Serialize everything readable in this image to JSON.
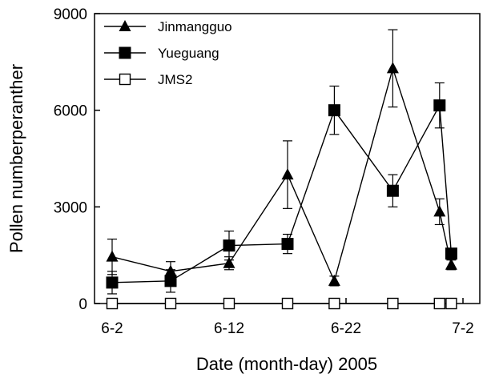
{
  "chart_data": {
    "type": "line",
    "title": "",
    "xlabel": "Date (month-day) 2005",
    "ylabel": "Pollen numberperanther",
    "xlim": [
      "06-02",
      "07-02"
    ],
    "ylim": [
      0,
      9000
    ],
    "x_ticks": [
      {
        "date": "06-02",
        "label": "6-2"
      },
      {
        "date": "06-12",
        "label": "6-12"
      },
      {
        "date": "06-22",
        "label": "6-22"
      },
      {
        "date": "07-02",
        "label": "7-2"
      }
    ],
    "y_ticks": [
      {
        "value": 0,
        "label": "0"
      },
      {
        "value": 3000,
        "label": "3000"
      },
      {
        "value": 6000,
        "label": "6000"
      },
      {
        "value": 9000,
        "label": "9000"
      }
    ],
    "x": [
      "06-02",
      "06-07",
      "06-12",
      "06-17",
      "06-21",
      "06-22",
      "06-27",
      "07-01"
    ],
    "legend_position": "top-left",
    "grid": false,
    "series": [
      {
        "name": "Jinmangguo",
        "marker": "triangle-filled",
        "x": [
          "06-02",
          "06-07",
          "06-12",
          "06-17",
          "06-21",
          "06-26",
          "06-30",
          "07-01"
        ],
        "values": [
          1450,
          1000,
          1250,
          4000,
          700,
          7300,
          2850,
          1200
        ],
        "errors": [
          550,
          300,
          200,
          1050,
          150,
          1200,
          400,
          150
        ]
      },
      {
        "name": "Yueguang",
        "marker": "square-filled",
        "x": [
          "06-02",
          "06-07",
          "06-12",
          "06-17",
          "06-21",
          "06-26",
          "06-30",
          "07-01"
        ],
        "values": [
          650,
          700,
          1800,
          1850,
          6000,
          3500,
          6150,
          1550
        ],
        "errors": [
          350,
          350,
          450,
          300,
          750,
          500,
          700,
          150
        ]
      },
      {
        "name": "JMS2",
        "marker": "square-open",
        "x": [
          "06-02",
          "06-07",
          "06-12",
          "06-17",
          "06-21",
          "06-26",
          "06-30",
          "07-01"
        ],
        "values": [
          0,
          0,
          0,
          0,
          0,
          0,
          0,
          0
        ],
        "errors": [
          0,
          0,
          0,
          0,
          0,
          0,
          0,
          0
        ]
      }
    ]
  }
}
